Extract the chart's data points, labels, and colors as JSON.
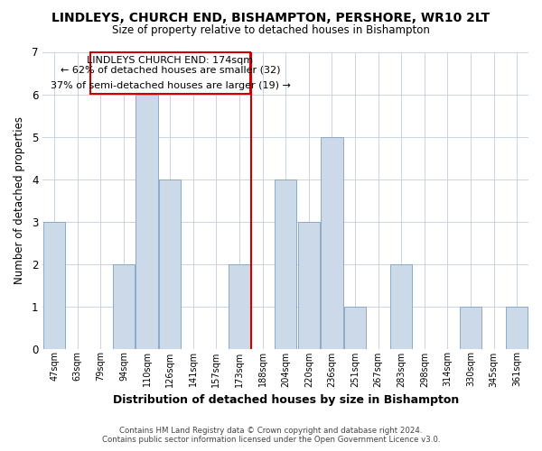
{
  "title": "LINDLEYS, CHURCH END, BISHAMPTON, PERSHORE, WR10 2LT",
  "subtitle": "Size of property relative to detached houses in Bishampton",
  "xlabel": "Distribution of detached houses by size in Bishampton",
  "ylabel": "Number of detached properties",
  "categories": [
    "47sqm",
    "63sqm",
    "79sqm",
    "94sqm",
    "110sqm",
    "126sqm",
    "141sqm",
    "157sqm",
    "173sqm",
    "188sqm",
    "204sqm",
    "220sqm",
    "236sqm",
    "251sqm",
    "267sqm",
    "283sqm",
    "298sqm",
    "314sqm",
    "330sqm",
    "345sqm",
    "361sqm"
  ],
  "values": [
    3,
    0,
    0,
    2,
    6,
    4,
    0,
    0,
    2,
    0,
    4,
    3,
    5,
    1,
    0,
    2,
    0,
    0,
    1,
    0,
    1
  ],
  "bar_color": "#ccd9e8",
  "bar_edge_color": "#8aaac8",
  "highlight_index": 8,
  "highlight_line_color": "#cc0000",
  "ylim": [
    0,
    7
  ],
  "yticks": [
    0,
    1,
    2,
    3,
    4,
    5,
    6,
    7
  ],
  "annotation_title": "LINDLEYS CHURCH END: 174sqm",
  "annotation_line1": "← 62% of detached houses are smaller (32)",
  "annotation_line2": "37% of semi-detached houses are larger (19) →",
  "annotation_box_color": "#ffffff",
  "annotation_box_edge": "#cc0000",
  "footer_line1": "Contains HM Land Registry data © Crown copyright and database right 2024.",
  "footer_line2": "Contains public sector information licensed under the Open Government Licence v3.0.",
  "background_color": "#ffffff",
  "grid_color": "#c8d4e0"
}
